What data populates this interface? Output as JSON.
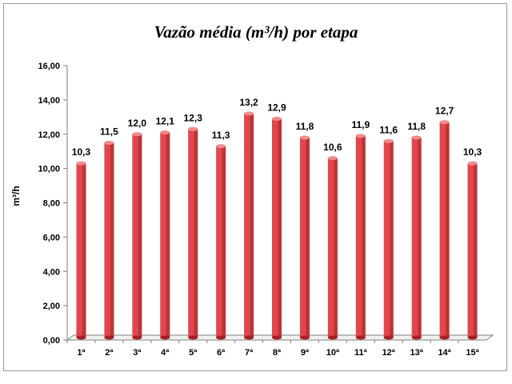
{
  "chart_data": {
    "type": "bar",
    "title": "Vazão média (m³/h) por etapa",
    "xlabel": "",
    "ylabel": "m³/h",
    "categories": [
      "1ª",
      "2ª",
      "3ª",
      "4ª",
      "5ª",
      "6ª",
      "7ª",
      "8ª",
      "9ª",
      "10ª",
      "11ª",
      "12ª",
      "13ª",
      "14ª",
      "15ª"
    ],
    "values": [
      10.3,
      11.5,
      12.0,
      12.1,
      12.3,
      11.3,
      13.2,
      12.9,
      11.8,
      10.6,
      11.9,
      11.6,
      11.8,
      12.7,
      10.3
    ],
    "value_labels": [
      "10,3",
      "11,5",
      "12,0",
      "12,1",
      "12,3",
      "11,3",
      "13,2",
      "12,9",
      "11,8",
      "10,6",
      "11,9",
      "11,6",
      "11,8",
      "12,7",
      "10,3"
    ],
    "ylim": [
      0,
      16
    ],
    "y_ticks": [
      0,
      2,
      4,
      6,
      8,
      10,
      12,
      14,
      16
    ],
    "y_tick_labels": [
      "0,00",
      "2,00",
      "4,00",
      "6,00",
      "8,00",
      "10,00",
      "12,00",
      "14,00",
      "16,00"
    ],
    "grid": false,
    "legend": "none",
    "colors": {
      "bar": "#e0474c",
      "bar_dark": "#a81f24",
      "bar_top": "#f08a8c",
      "axis": "#7f7f7f"
    }
  }
}
